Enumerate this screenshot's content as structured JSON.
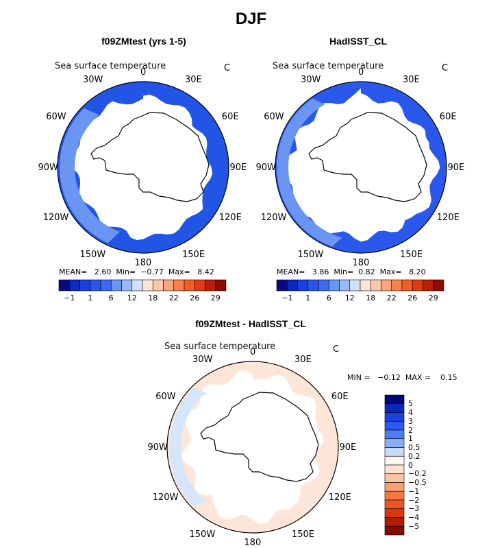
{
  "figure": {
    "title": "DJF"
  },
  "panels": [
    {
      "title": "f09ZMtest (yrs 1-5)",
      "variable": "Sea surface temperature",
      "units": "C",
      "stats": {
        "mean_label": "MEAN=",
        "mean": "2.60",
        "min_label": "Min=",
        "min": "−0.77",
        "max_label": "Max=",
        "max": "8.42"
      }
    },
    {
      "title": "HadISST_CL",
      "variable": "Sea surface temperature",
      "units": "C",
      "stats": {
        "mean_label": "MEAN=",
        "mean": "3.86",
        "min_label": "Min=",
        "min": "0.82",
        "max_label": "Max=",
        "max": "8.20"
      }
    },
    {
      "title": "f09ZMtest - HadISST_CL",
      "variable": "Sea surface temperature",
      "units": "C",
      "minmax_text": "MIN =   −0.12  MAX =    0.15"
    }
  ],
  "lon_labels": [
    "0",
    "30E",
    "60E",
    "90E",
    "120E",
    "150E",
    "180",
    "150W",
    "120W",
    "90W",
    "60W",
    "30W"
  ],
  "colorbar_abs": {
    "colors": [
      "#0a0a80",
      "#0a2ac0",
      "#1a3fe0",
      "#2a55ea",
      "#3d6bf0",
      "#6a95f2",
      "#9bbaf5",
      "#d0e2f8",
      "#fde6d8",
      "#fcc7ac",
      "#f9a57e",
      "#f6834f",
      "#f25e26",
      "#e03a10",
      "#b81e08",
      "#8a0f02"
    ],
    "tick_labels": [
      "−1",
      "1",
      "6",
      "12",
      "18",
      "22",
      "26",
      "29"
    ]
  },
  "colorbar_diff": {
    "colors": [
      "#05057a",
      "#0a28c0",
      "#1b40e0",
      "#2f58ec",
      "#4f7bf0",
      "#8aaef3",
      "#c6dbf7",
      "#fdf6f0",
      "#fde3d0",
      "#fcc4a3",
      "#f8a072",
      "#f47a44",
      "#ef5520",
      "#d9360c",
      "#b01c05",
      "#7f0d00"
    ],
    "tick_labels": [
      "5",
      "4",
      "3",
      "2",
      "1",
      "0.5",
      "0.2",
      "0",
      "−0.2",
      "−0.5",
      "−1",
      "−2",
      "−3",
      "−4",
      "−5"
    ]
  },
  "chart_data": [
    {
      "type": "heatmap",
      "projection": "south polar stereographic",
      "title": "f09ZMtest (yrs 1-5)",
      "variable": "Sea surface temperature",
      "units": "C",
      "mean": 2.6,
      "min": -0.77,
      "max": 8.42,
      "levels": [
        -1,
        1,
        6,
        12,
        18,
        22,
        26,
        29
      ]
    },
    {
      "type": "heatmap",
      "projection": "south polar stereographic",
      "title": "HadISST_CL",
      "variable": "Sea surface temperature",
      "units": "C",
      "mean": 3.86,
      "min": 0.82,
      "max": 8.2,
      "levels": [
        -1,
        1,
        6,
        12,
        18,
        22,
        26,
        29
      ]
    },
    {
      "type": "heatmap",
      "projection": "south polar stereographic",
      "title": "f09ZMtest - HadISST_CL",
      "variable": "Sea surface temperature",
      "units": "C",
      "min": -0.12,
      "max": 0.15,
      "levels": [
        -5,
        -4,
        -3,
        -2,
        -1,
        -0.5,
        -0.2,
        0,
        0.2,
        0.5,
        1,
        2,
        3,
        4,
        5
      ]
    }
  ]
}
